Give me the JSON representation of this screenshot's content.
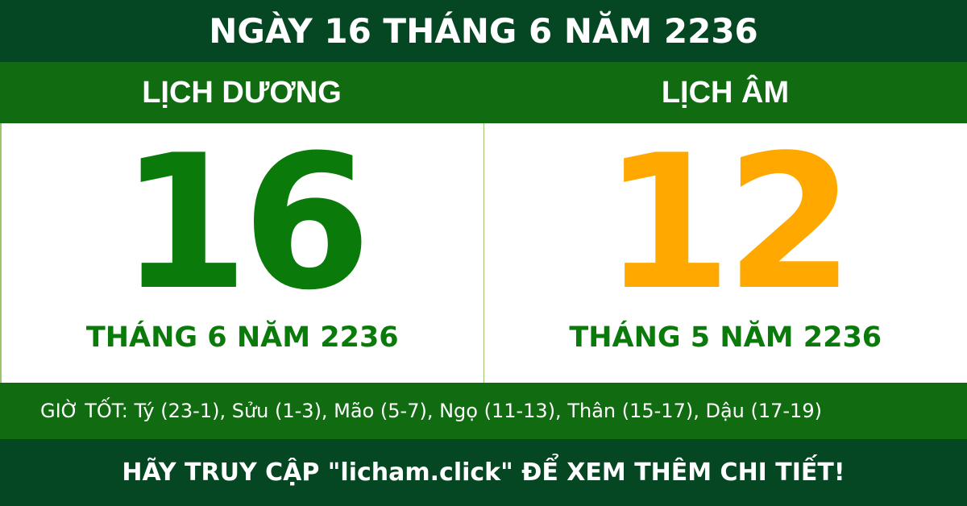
{
  "title": "NGÀY 16 THÁNG 6 NĂM 2236",
  "solar": {
    "label": "LỊCH DƯƠNG",
    "day": "16",
    "month_year": "THÁNG 6 NĂM 2236",
    "color": "#0a7a0a"
  },
  "lunar": {
    "label": "LỊCH ÂM",
    "day": "12",
    "month_year": "THÁNG 5 NĂM 2236",
    "color": "#ffa800"
  },
  "good_hours": "GIỜ TỐT: Tý (23-1), Sửu (1-3), Mão (5-7), Ngọ (11-13), Thân (15-17), Dậu (17-19)",
  "footer": "HÃY TRUY CẬP \"licham.click\" ĐỂ XEM THÊM CHI TIẾT!"
}
